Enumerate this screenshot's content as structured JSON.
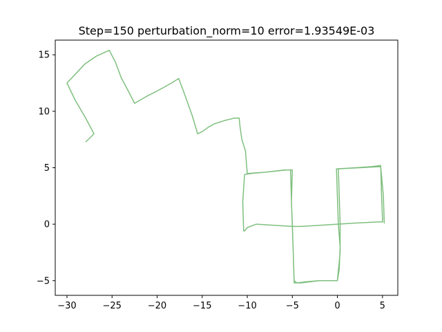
{
  "chart_data": {
    "type": "line",
    "title": "Step=150 perturbation_norm=10 error=1.93549E-03",
    "xlabel": "",
    "ylabel": "",
    "xlim": [
      -31.3,
      6.7
    ],
    "ylim": [
      -6.3,
      16.3
    ],
    "xticks": [
      -30,
      -25,
      -20,
      -15,
      -10,
      -5,
      0,
      5
    ],
    "yticks": [
      -5,
      0,
      5,
      10,
      15
    ],
    "xtick_labels": [
      "−30",
      "−25",
      "−20",
      "−15",
      "−10",
      "−5",
      "0",
      "5"
    ],
    "ytick_labels": [
      "−5",
      "0",
      "5",
      "10",
      "15"
    ],
    "grid": false,
    "series": [
      {
        "color": "#7fbf7f",
        "x": [
          -27.9,
          -27.0,
          -28.0,
          -29.1,
          -30.0,
          -28.0,
          -26.7,
          -25.3,
          -24.6,
          -24.0,
          -23.2,
          -22.5,
          -21.2,
          -20.0,
          -19.3,
          -18.4,
          -17.6,
          -17.0,
          -16.5,
          -16.1,
          -15.5,
          -15.0,
          -14.3,
          -13.6,
          -12.4,
          -11.4,
          -10.9,
          -10.8,
          -10.6,
          -10.2,
          -10.0,
          -9.9,
          -9.9,
          -8.0,
          -5.7,
          -5.2,
          -5.1,
          -5.0,
          -4.9,
          -4.8,
          -4.6,
          -4.0,
          -3.0,
          -2.0,
          -1.0,
          0.0,
          0.2,
          0.3,
          0.1,
          0.0,
          -0.1,
          2.0,
          3.8,
          4.8,
          4.9,
          5.0,
          5.0,
          4.5,
          2.0,
          0.0,
          -2.0,
          -4.0,
          -5.0,
          -7.0,
          -9.0,
          -10.0,
          -10.3,
          -10.4,
          -10.5,
          -10.3,
          -9.5,
          -8.0,
          -5.9,
          -5.0,
          -5.1,
          -5.0,
          -4.9,
          -4.8,
          -4.5,
          -3.5,
          -2.0,
          0.0,
          0.3,
          0.3,
          0.2,
          0.1,
          2.5,
          4.8,
          5.1,
          5.2
        ],
        "y": [
          7.3,
          8.0,
          9.5,
          11.0,
          12.5,
          14.2,
          14.9,
          15.4,
          14.3,
          13.0,
          11.8,
          10.7,
          11.3,
          11.8,
          12.1,
          12.5,
          12.9,
          11.6,
          10.5,
          9.6,
          8.0,
          8.2,
          8.6,
          8.9,
          9.2,
          9.4,
          9.4,
          8.6,
          7.5,
          6.5,
          4.5,
          4.5,
          4.5,
          4.6,
          4.8,
          4.8,
          2.0,
          0.0,
          -2.5,
          -5.2,
          -5.2,
          -5.2,
          -5.1,
          -5.0,
          -5.0,
          -5.0,
          -4.0,
          -2.0,
          0.0,
          2.5,
          4.9,
          5.0,
          5.1,
          5.2,
          2.5,
          0.5,
          0.2,
          0.2,
          0.1,
          0.0,
          -0.1,
          -0.2,
          -0.2,
          -0.1,
          0.0,
          -0.3,
          -0.6,
          -0.6,
          2.0,
          4.4,
          4.5,
          4.6,
          4.8,
          4.8,
          2.0,
          -0.2,
          -2.5,
          -5.0,
          -5.2,
          -5.1,
          -5.0,
          -5.0,
          -2.5,
          0.0,
          2.5,
          4.9,
          5.0,
          5.1,
          2.5,
          0.1
        ]
      }
    ]
  }
}
